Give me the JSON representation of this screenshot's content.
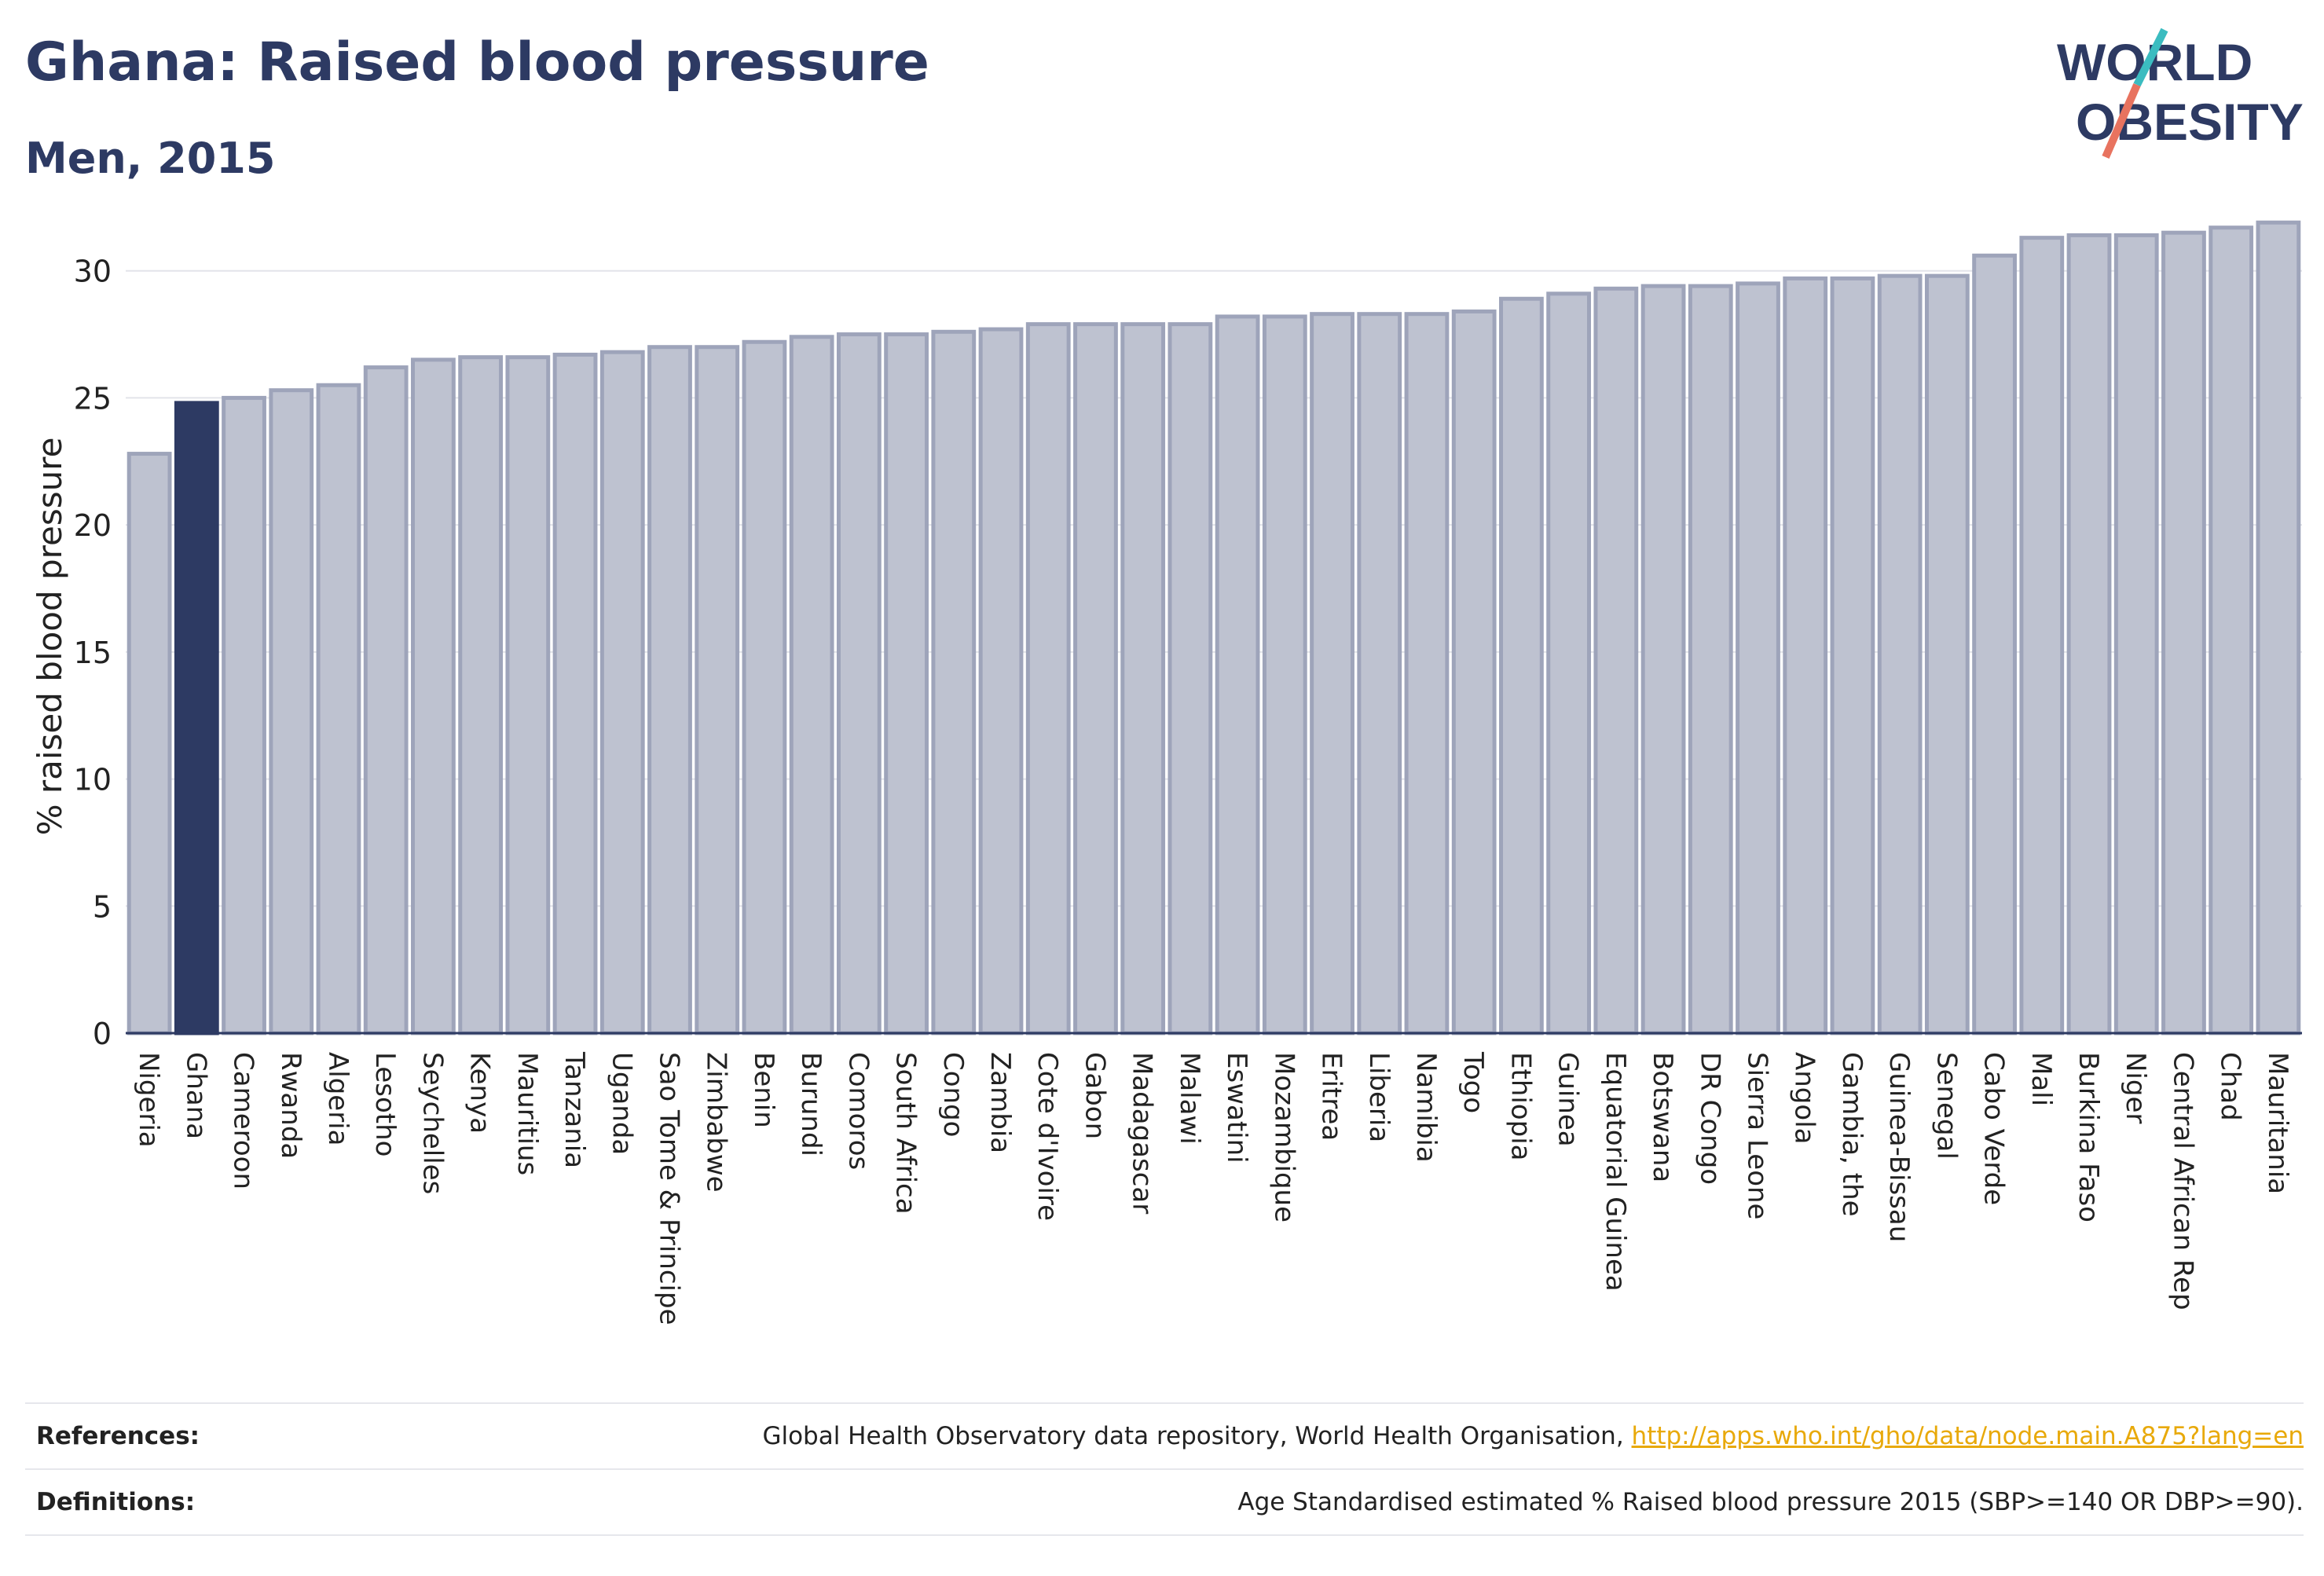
{
  "title": "Ghana: Raised blood pressure",
  "subtitle": "Men, 2015",
  "logo": {
    "line1": "WORLD",
    "line2": "OBESITY"
  },
  "colors": {
    "highlight": "#2d3a63",
    "bar": "#bec2d0",
    "bar_border": "#9ea4ba",
    "text": "#2d3a63",
    "link": "#e8a90a"
  },
  "chart_data": {
    "type": "bar",
    "ylabel": "% raised blood pressure",
    "ylim": [
      0,
      32
    ],
    "yticks": [
      0,
      5,
      10,
      15,
      20,
      25,
      30
    ],
    "highlight": "Ghana",
    "categories": [
      "Nigeria",
      "Ghana",
      "Cameroon",
      "Rwanda",
      "Algeria",
      "Lesotho",
      "Seychelles",
      "Kenya",
      "Mauritius",
      "Tanzania",
      "Uganda",
      "Sao Tome & Principe",
      "Zimbabwe",
      "Benin",
      "Burundi",
      "Comoros",
      "South Africa",
      "Congo",
      "Zambia",
      "Cote d'Ivoire",
      "Gabon",
      "Madagascar",
      "Malawi",
      "Eswatini",
      "Mozambique",
      "Eritrea",
      "Liberia",
      "Namibia",
      "Togo",
      "Ethiopia",
      "Guinea",
      "Equatorial Guinea",
      "Botswana",
      "DR Congo",
      "Sierra Leone",
      "Angola",
      "Gambia, the",
      "Guinea-Bissau",
      "Senegal",
      "Cabo Verde",
      "Mali",
      "Burkina Faso",
      "Niger",
      "Central African Rep",
      "Chad",
      "Mauritania"
    ],
    "values": [
      22.8,
      24.8,
      25.0,
      25.3,
      25.5,
      26.2,
      26.5,
      26.6,
      26.6,
      26.7,
      26.8,
      27.0,
      27.0,
      27.2,
      27.4,
      27.5,
      27.5,
      27.6,
      27.7,
      27.9,
      27.9,
      27.9,
      27.9,
      28.2,
      28.2,
      28.3,
      28.3,
      28.3,
      28.4,
      28.9,
      29.1,
      29.3,
      29.4,
      29.4,
      29.5,
      29.7,
      29.7,
      29.8,
      29.8,
      30.6,
      31.3,
      31.4,
      31.4,
      31.5,
      31.7,
      31.9
    ]
  },
  "footer": {
    "references_label": "References:",
    "references_text": "Global Health Observatory data repository, World Health Organisation, ",
    "references_link": "http://apps.who.int/gho/data/node.main.A875?lang=en",
    "definitions_label": "Definitions:",
    "definitions_text": "Age Standardised estimated % Raised blood pressure 2015 (SBP>=140 OR DBP>=90)."
  }
}
